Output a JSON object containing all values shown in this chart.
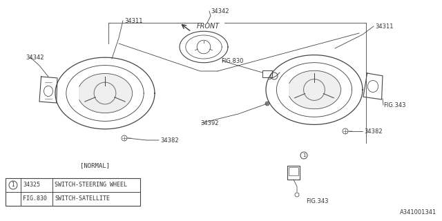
{
  "background_color": "#ffffff",
  "line_color": "#444444",
  "text_color": "#333333",
  "diagram_label": "A341001341",
  "front_label": "FRONT",
  "legend": [
    {
      "col1": "34325",
      "col2": "SWITCH-STEERING WHEEL"
    },
    {
      "col1": "FIG.830",
      "col2": "SWITCH-SATELLITE"
    }
  ]
}
